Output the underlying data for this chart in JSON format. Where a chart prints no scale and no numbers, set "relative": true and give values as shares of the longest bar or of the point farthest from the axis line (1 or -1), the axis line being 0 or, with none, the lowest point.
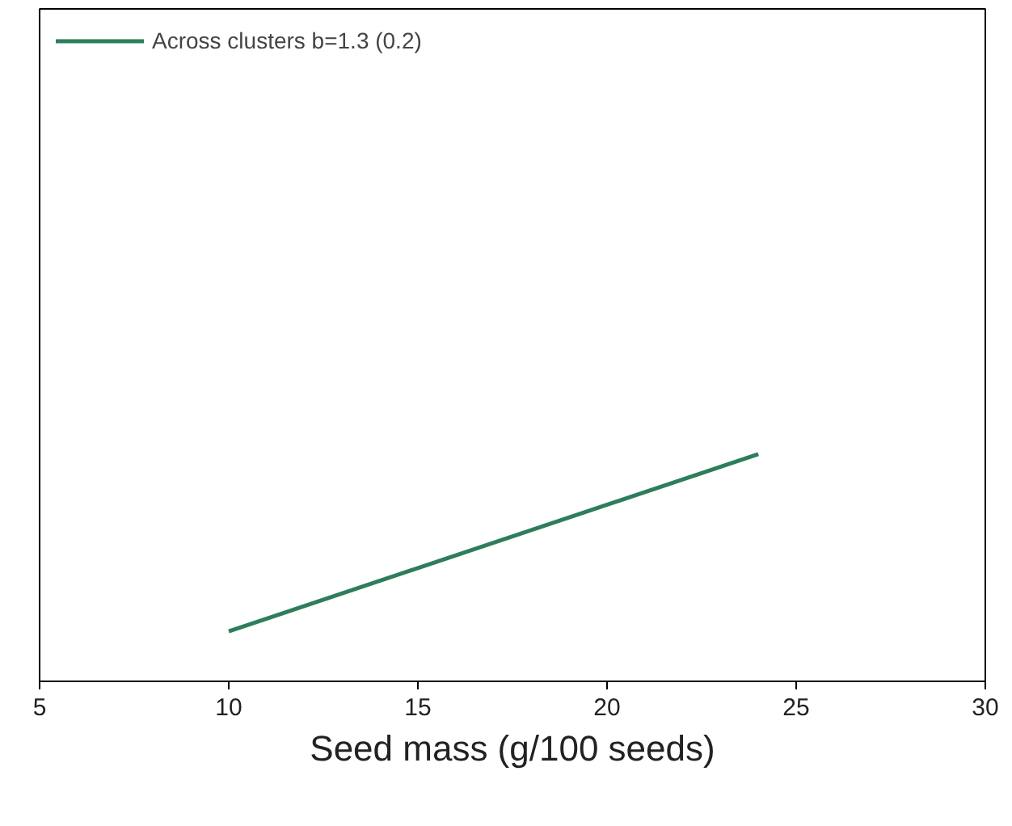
{
  "chart_data": {
    "type": "line",
    "xlabel": "Seed mass (g/100 seeds)",
    "relative": true,
    "xlim": [
      5,
      30
    ],
    "xticks": [
      5,
      10,
      15,
      20,
      25,
      30
    ],
    "legend": "top left",
    "grid": false,
    "series": [
      {
        "name": "Across clusters b=1.3 (0.2)",
        "color": "#2e7d5b",
        "x": [
          10,
          24
        ],
        "values": [
          0.22,
          1
        ]
      }
    ]
  }
}
